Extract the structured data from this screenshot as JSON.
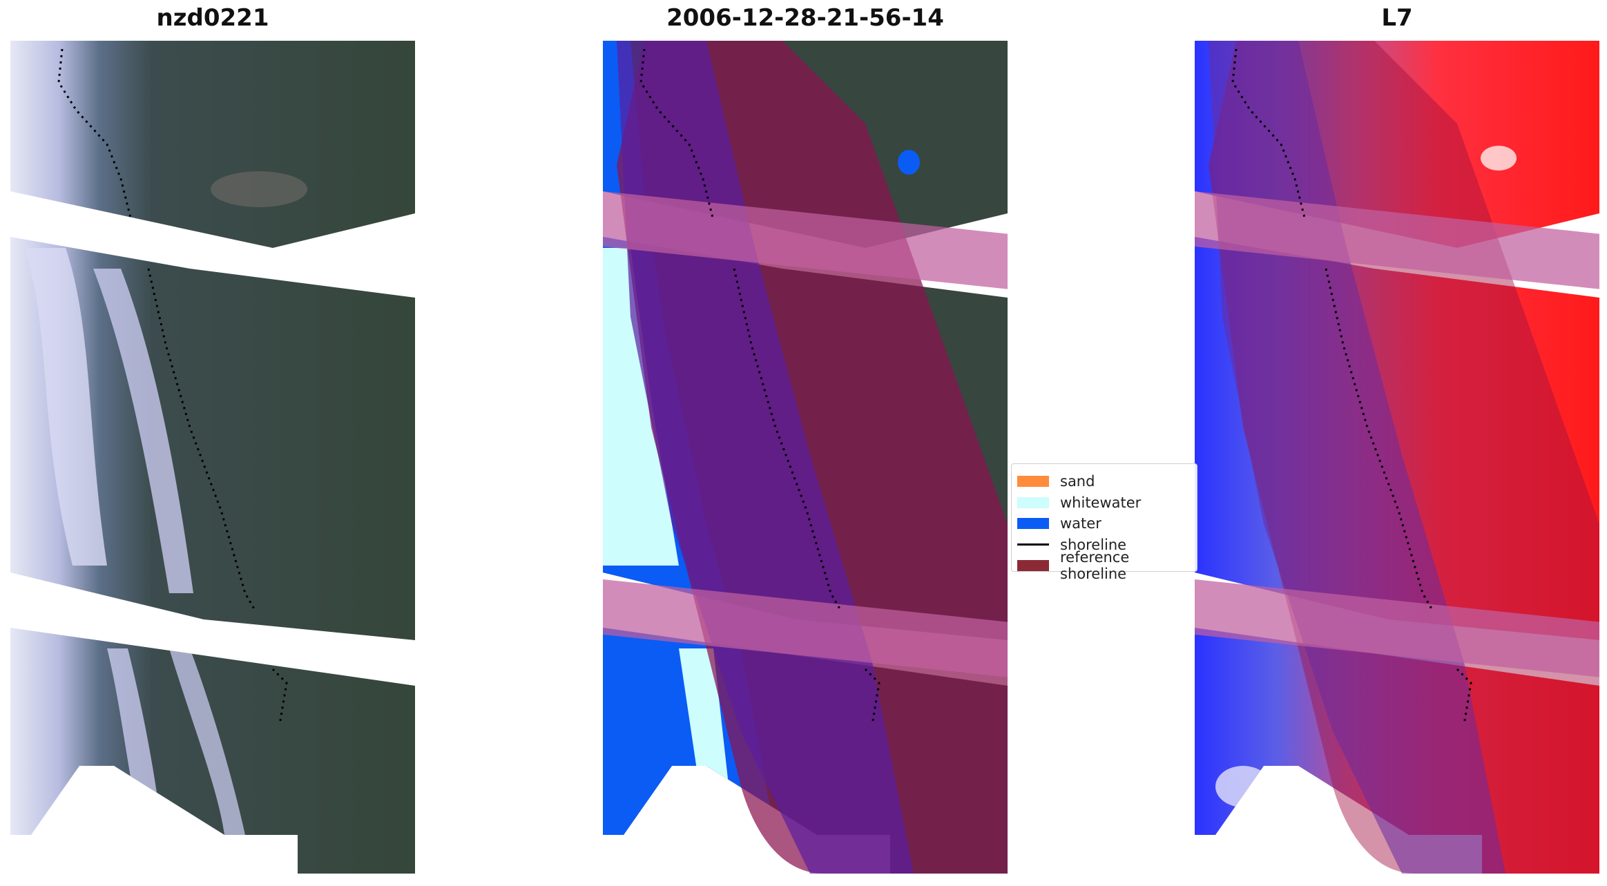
{
  "panels": [
    {
      "title": "nzd0221"
    },
    {
      "title": "2006-12-28-21-56-14"
    },
    {
      "title": "L7"
    }
  ],
  "legend": {
    "items": [
      {
        "label": "sand",
        "color": "#ff8c3c",
        "kind": "patch"
      },
      {
        "label": "whitewater",
        "color": "#cdfdfd",
        "kind": "patch"
      },
      {
        "label": "water",
        "color": "#0a5cf5",
        "kind": "patch"
      },
      {
        "label": "shoreline",
        "color": "#000000",
        "kind": "line"
      },
      {
        "label": "reference shoreline",
        "color": "#8b2a35",
        "kind": "patch"
      }
    ]
  }
}
